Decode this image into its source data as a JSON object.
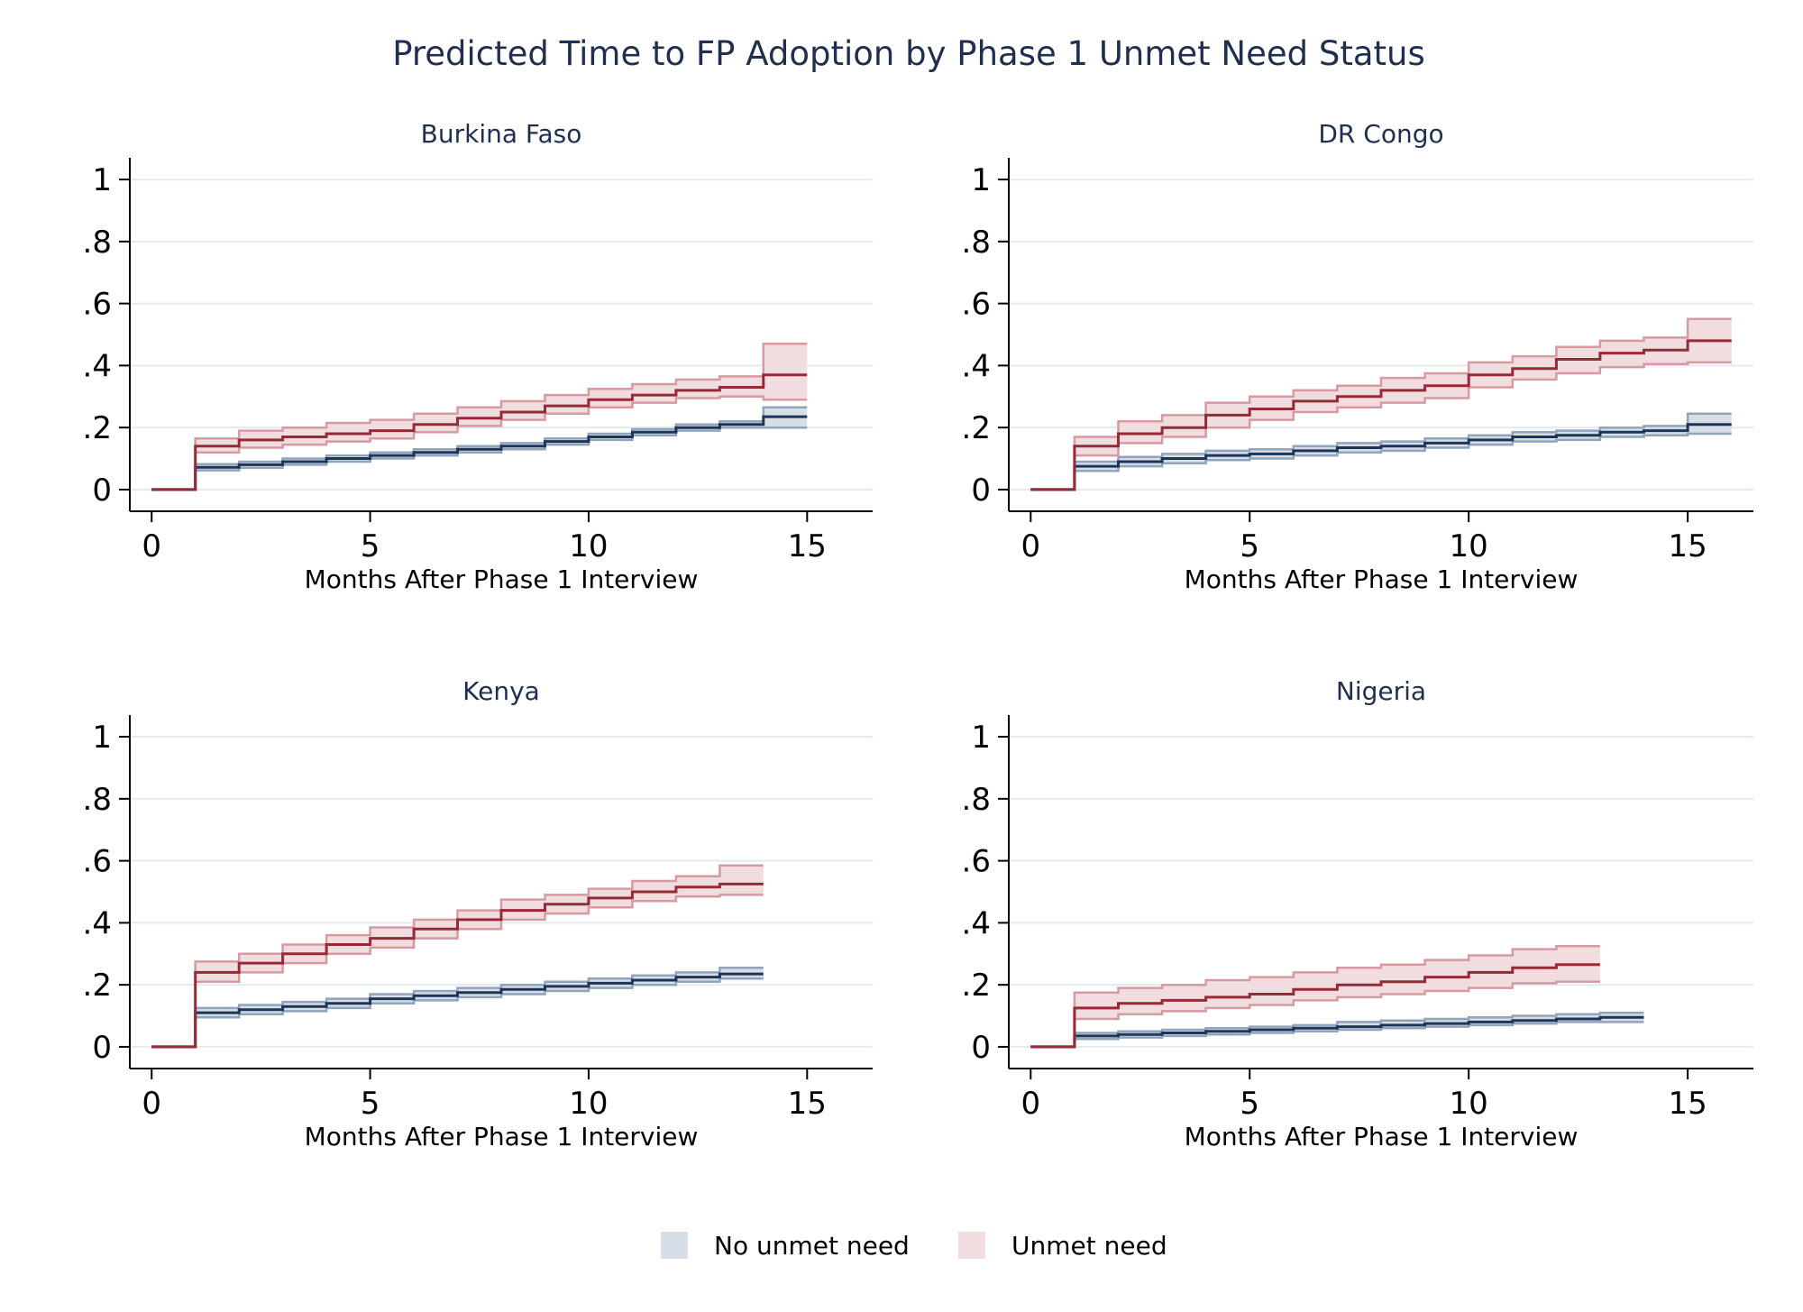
{
  "chart_title": "Predicted Time to FP Adoption by Phase 1 Unmet Need Status",
  "legend": [
    {
      "label": "No unmet need",
      "fill": "#d8dee8",
      "line": "#1d3557",
      "band": "#90a4bc"
    },
    {
      "label": "Unmet need",
      "fill": "#f1dcdf",
      "line": "#962a36",
      "band": "#d59aa2"
    }
  ],
  "chart_data": [
    {
      "type": "line",
      "title": "Burkina Faso",
      "xlabel": "Months After Phase 1 Interview",
      "ylabel": "",
      "xlim": [
        -0.5,
        16.5
      ],
      "ylim": [
        -0.07,
        1.07
      ],
      "xticks": [
        {
          "v": 0,
          "label": "0"
        },
        {
          "v": 5,
          "label": "5"
        },
        {
          "v": 10,
          "label": "10"
        },
        {
          "v": 15,
          "label": "15"
        }
      ],
      "yticks": [
        {
          "v": 0,
          "label": "0"
        },
        {
          "v": 0.2,
          "label": ".2"
        },
        {
          "v": 0.4,
          "label": ".4"
        },
        {
          "v": 0.6,
          "label": ".6"
        },
        {
          "v": 0.8,
          "label": ".8"
        },
        {
          "v": 1,
          "label": "1"
        }
      ],
      "grid": true,
      "series": [
        {
          "name": "No unmet need",
          "style": 0,
          "end": 15,
          "x": [
            0,
            1,
            2,
            3,
            4,
            5,
            6,
            7,
            8,
            9,
            10,
            11,
            12,
            13,
            14
          ],
          "y": [
            0,
            0.072,
            0.08,
            0.09,
            0.1,
            0.11,
            0.12,
            0.13,
            0.14,
            0.155,
            0.17,
            0.185,
            0.2,
            0.21,
            0.235
          ],
          "lo": [
            0,
            0.062,
            0.07,
            0.08,
            0.09,
            0.1,
            0.11,
            0.12,
            0.13,
            0.145,
            0.16,
            0.175,
            0.19,
            0.2,
            0.2
          ],
          "hi": [
            0,
            0.082,
            0.09,
            0.1,
            0.11,
            0.12,
            0.13,
            0.14,
            0.15,
            0.165,
            0.18,
            0.195,
            0.21,
            0.22,
            0.265
          ]
        },
        {
          "name": "Unmet need",
          "style": 1,
          "end": 15,
          "x": [
            0,
            1,
            2,
            3,
            4,
            5,
            6,
            7,
            8,
            9,
            10,
            11,
            12,
            13,
            14
          ],
          "y": [
            0,
            0.14,
            0.16,
            0.17,
            0.18,
            0.19,
            0.21,
            0.23,
            0.25,
            0.27,
            0.29,
            0.305,
            0.32,
            0.33,
            0.37
          ],
          "lo": [
            0,
            0.12,
            0.135,
            0.145,
            0.155,
            0.165,
            0.185,
            0.205,
            0.225,
            0.245,
            0.265,
            0.28,
            0.295,
            0.3,
            0.29
          ],
          "hi": [
            0,
            0.165,
            0.19,
            0.2,
            0.215,
            0.225,
            0.245,
            0.265,
            0.285,
            0.305,
            0.325,
            0.34,
            0.355,
            0.365,
            0.47
          ]
        }
      ]
    },
    {
      "type": "line",
      "title": "DR Congo",
      "xlabel": "Months After Phase 1 Interview",
      "ylabel": "",
      "xlim": [
        -0.5,
        16.5
      ],
      "ylim": [
        -0.07,
        1.07
      ],
      "xticks": [
        {
          "v": 0,
          "label": "0"
        },
        {
          "v": 5,
          "label": "5"
        },
        {
          "v": 10,
          "label": "10"
        },
        {
          "v": 15,
          "label": "15"
        }
      ],
      "yticks": [
        {
          "v": 0,
          "label": "0"
        },
        {
          "v": 0.2,
          "label": ".2"
        },
        {
          "v": 0.4,
          "label": ".4"
        },
        {
          "v": 0.6,
          "label": ".6"
        },
        {
          "v": 0.8,
          "label": ".8"
        },
        {
          "v": 1,
          "label": "1"
        }
      ],
      "grid": true,
      "series": [
        {
          "name": "No unmet need",
          "style": 0,
          "end": 16,
          "x": [
            0,
            1,
            2,
            3,
            4,
            5,
            6,
            7,
            8,
            9,
            10,
            11,
            12,
            13,
            14,
            15
          ],
          "y": [
            0,
            0.075,
            0.09,
            0.1,
            0.11,
            0.115,
            0.125,
            0.135,
            0.14,
            0.15,
            0.16,
            0.17,
            0.175,
            0.185,
            0.19,
            0.21
          ],
          "lo": [
            0,
            0.06,
            0.075,
            0.085,
            0.095,
            0.1,
            0.11,
            0.12,
            0.125,
            0.135,
            0.145,
            0.155,
            0.16,
            0.17,
            0.175,
            0.18
          ],
          "hi": [
            0,
            0.09,
            0.105,
            0.115,
            0.125,
            0.13,
            0.14,
            0.15,
            0.155,
            0.165,
            0.175,
            0.185,
            0.19,
            0.2,
            0.205,
            0.245
          ]
        },
        {
          "name": "Unmet need",
          "style": 1,
          "end": 16,
          "x": [
            0,
            1,
            2,
            3,
            4,
            5,
            6,
            7,
            8,
            9,
            10,
            11,
            12,
            13,
            14,
            15
          ],
          "y": [
            0,
            0.14,
            0.18,
            0.2,
            0.24,
            0.26,
            0.285,
            0.3,
            0.32,
            0.335,
            0.37,
            0.39,
            0.42,
            0.44,
            0.45,
            0.48
          ],
          "lo": [
            0,
            0.11,
            0.15,
            0.17,
            0.2,
            0.225,
            0.25,
            0.265,
            0.28,
            0.295,
            0.33,
            0.355,
            0.375,
            0.395,
            0.405,
            0.41
          ],
          "hi": [
            0,
            0.17,
            0.22,
            0.24,
            0.28,
            0.3,
            0.32,
            0.335,
            0.36,
            0.375,
            0.41,
            0.43,
            0.46,
            0.48,
            0.49,
            0.55
          ]
        }
      ]
    },
    {
      "type": "line",
      "title": "Kenya",
      "xlabel": "Months After Phase 1 Interview",
      "ylabel": "",
      "xlim": [
        -0.5,
        16.5
      ],
      "ylim": [
        -0.07,
        1.07
      ],
      "xticks": [
        {
          "v": 0,
          "label": "0"
        },
        {
          "v": 5,
          "label": "5"
        },
        {
          "v": 10,
          "label": "10"
        },
        {
          "v": 15,
          "label": "15"
        }
      ],
      "yticks": [
        {
          "v": 0,
          "label": "0"
        },
        {
          "v": 0.2,
          "label": ".2"
        },
        {
          "v": 0.4,
          "label": ".4"
        },
        {
          "v": 0.6,
          "label": ".6"
        },
        {
          "v": 0.8,
          "label": ".8"
        },
        {
          "v": 1,
          "label": "1"
        }
      ],
      "grid": true,
      "series": [
        {
          "name": "No unmet need",
          "style": 0,
          "end": 14,
          "x": [
            0,
            1,
            2,
            3,
            4,
            5,
            6,
            7,
            8,
            9,
            10,
            11,
            12,
            13
          ],
          "y": [
            0,
            0.11,
            0.12,
            0.13,
            0.14,
            0.155,
            0.165,
            0.175,
            0.185,
            0.195,
            0.205,
            0.215,
            0.225,
            0.235
          ],
          "lo": [
            0,
            0.095,
            0.105,
            0.115,
            0.125,
            0.14,
            0.15,
            0.16,
            0.17,
            0.18,
            0.19,
            0.2,
            0.21,
            0.22
          ],
          "hi": [
            0,
            0.125,
            0.135,
            0.145,
            0.155,
            0.17,
            0.18,
            0.19,
            0.2,
            0.21,
            0.22,
            0.23,
            0.24,
            0.255
          ]
        },
        {
          "name": "Unmet need",
          "style": 1,
          "end": 14,
          "x": [
            0,
            1,
            2,
            3,
            4,
            5,
            6,
            7,
            8,
            9,
            10,
            11,
            12,
            13
          ],
          "y": [
            0,
            0.24,
            0.27,
            0.3,
            0.33,
            0.35,
            0.38,
            0.41,
            0.44,
            0.46,
            0.48,
            0.5,
            0.515,
            0.525
          ],
          "lo": [
            0,
            0.21,
            0.24,
            0.27,
            0.3,
            0.32,
            0.35,
            0.38,
            0.41,
            0.43,
            0.45,
            0.47,
            0.485,
            0.49
          ],
          "hi": [
            0,
            0.275,
            0.3,
            0.33,
            0.36,
            0.385,
            0.41,
            0.44,
            0.475,
            0.49,
            0.51,
            0.535,
            0.55,
            0.585
          ]
        }
      ]
    },
    {
      "type": "line",
      "title": "Nigeria",
      "xlabel": "Months After Phase 1 Interview",
      "ylabel": "",
      "xlim": [
        -0.5,
        16.5
      ],
      "ylim": [
        -0.07,
        1.07
      ],
      "xticks": [
        {
          "v": 0,
          "label": "0"
        },
        {
          "v": 5,
          "label": "5"
        },
        {
          "v": 10,
          "label": "10"
        },
        {
          "v": 15,
          "label": "15"
        }
      ],
      "yticks": [
        {
          "v": 0,
          "label": "0"
        },
        {
          "v": 0.2,
          "label": ".2"
        },
        {
          "v": 0.4,
          "label": ".4"
        },
        {
          "v": 0.6,
          "label": ".6"
        },
        {
          "v": 0.8,
          "label": ".8"
        },
        {
          "v": 1,
          "label": "1"
        }
      ],
      "grid": true,
      "series": [
        {
          "name": "No unmet need",
          "style": 0,
          "end": 14,
          "x": [
            0,
            1,
            2,
            3,
            4,
            5,
            6,
            7,
            8,
            9,
            10,
            11,
            12,
            13
          ],
          "y": [
            0,
            0.035,
            0.04,
            0.045,
            0.05,
            0.055,
            0.06,
            0.065,
            0.07,
            0.075,
            0.08,
            0.085,
            0.09,
            0.095
          ],
          "lo": [
            0,
            0.025,
            0.03,
            0.035,
            0.04,
            0.045,
            0.05,
            0.055,
            0.06,
            0.065,
            0.07,
            0.075,
            0.08,
            0.08
          ],
          "hi": [
            0,
            0.045,
            0.05,
            0.055,
            0.06,
            0.065,
            0.07,
            0.08,
            0.085,
            0.09,
            0.095,
            0.1,
            0.105,
            0.11
          ]
        },
        {
          "name": "Unmet need",
          "style": 1,
          "end": 13,
          "x": [
            0,
            1,
            2,
            3,
            4,
            5,
            6,
            7,
            8,
            9,
            10,
            11,
            12
          ],
          "y": [
            0,
            0.125,
            0.14,
            0.15,
            0.16,
            0.17,
            0.185,
            0.2,
            0.21,
            0.225,
            0.24,
            0.255,
            0.265
          ],
          "lo": [
            0,
            0.09,
            0.105,
            0.115,
            0.125,
            0.135,
            0.15,
            0.16,
            0.17,
            0.18,
            0.19,
            0.205,
            0.21
          ],
          "hi": [
            0,
            0.175,
            0.19,
            0.2,
            0.215,
            0.225,
            0.24,
            0.255,
            0.265,
            0.28,
            0.295,
            0.315,
            0.325
          ]
        }
      ]
    }
  ]
}
